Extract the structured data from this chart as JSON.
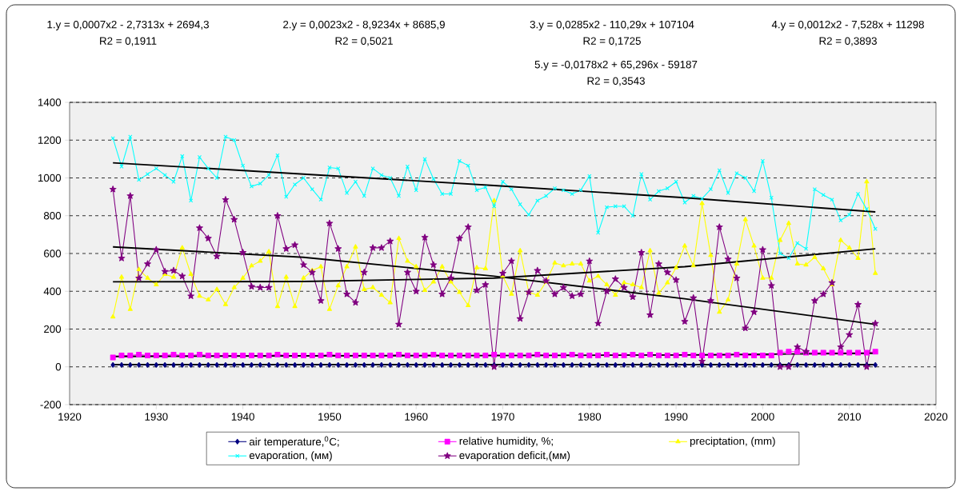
{
  "chart_data": {
    "type": "line",
    "xlim": [
      1920,
      2020
    ],
    "xticks": [
      1920,
      1930,
      1940,
      1950,
      1960,
      1970,
      1980,
      1990,
      2000,
      2010,
      2020
    ],
    "ylim": [
      -200,
      1400
    ],
    "yticks": [
      -200,
      0,
      200,
      400,
      600,
      800,
      1000,
      1200,
      1400
    ],
    "grid": "y",
    "legend": "bottom",
    "line_style": "solid",
    "annotations": [
      "1.y = 0,0007x2 - 2,7313x + 2694,3",
      "R2 = 0,1911",
      "2.y = 0,0023x2 - 8,9234x + 8685,9",
      "R2 = 0,5021",
      "3.y = 0,0285x2 - 110,29x + 107104",
      "R2 = 0,1725",
      "4.y = 0,0012x2 - 7,528x + 11298",
      "R2 = 0,3893",
      "5.y = -0,0178x2 + 65,296x - 59187",
      "R2 = 0,3543"
    ],
    "x": [
      1925,
      1926,
      1927,
      1928,
      1929,
      1930,
      1931,
      1932,
      1933,
      1934,
      1935,
      1936,
      1937,
      1938,
      1939,
      1940,
      1941,
      1942,
      1943,
      1944,
      1945,
      1946,
      1947,
      1948,
      1949,
      1950,
      1951,
      1952,
      1953,
      1954,
      1955,
      1956,
      1957,
      1958,
      1959,
      1960,
      1961,
      1962,
      1963,
      1964,
      1965,
      1966,
      1967,
      1968,
      1969,
      1970,
      1971,
      1972,
      1973,
      1974,
      1975,
      1976,
      1977,
      1978,
      1979,
      1980,
      1981,
      1982,
      1983,
      1984,
      1985,
      1986,
      1987,
      1988,
      1989,
      1990,
      1991,
      1992,
      1993,
      1994,
      1995,
      1996,
      1997,
      1998,
      1999,
      2000,
      2001,
      2002,
      2003,
      2004,
      2005,
      2006,
      2007,
      2008,
      2009,
      2010,
      2011,
      2012,
      2013
    ],
    "series": [
      {
        "name": "air temperature,$^{0}$C;",
        "color": "#000080",
        "marker": "diamond",
        "values": [
          10,
          10,
          10,
          10,
          10,
          10,
          10,
          10,
          10,
          10,
          10,
          10,
          10,
          10,
          10,
          10,
          10,
          10,
          10,
          10,
          10,
          10,
          10,
          10,
          10,
          10,
          10,
          10,
          10,
          10,
          10,
          10,
          10,
          10,
          10,
          10,
          10,
          10,
          10,
          10,
          10,
          10,
          10,
          10,
          10,
          10,
          10,
          10,
          10,
          10,
          10,
          10,
          10,
          10,
          10,
          10,
          10,
          10,
          10,
          10,
          10,
          10,
          10,
          10,
          10,
          10,
          10,
          10,
          10,
          10,
          10,
          10,
          10,
          10,
          10,
          10,
          10,
          10,
          10,
          10,
          10,
          10,
          10,
          10,
          10,
          10,
          10,
          10,
          10
        ]
      },
      {
        "name": "relative humidity, %;",
        "color": "#ff00ff",
        "marker": "square",
        "values": [
          50,
          60,
          60,
          65,
          60,
          60,
          60,
          65,
          60,
          60,
          65,
          60,
          60,
          60,
          60,
          60,
          60,
          60,
          60,
          65,
          60,
          60,
          60,
          60,
          60,
          65,
          60,
          60,
          60,
          60,
          60,
          60,
          60,
          65,
          60,
          60,
          60,
          65,
          60,
          60,
          60,
          60,
          60,
          60,
          65,
          60,
          60,
          60,
          60,
          65,
          60,
          60,
          60,
          65,
          60,
          60,
          60,
          65,
          60,
          60,
          65,
          60,
          65,
          60,
          60,
          60,
          65,
          60,
          60,
          60,
          60,
          60,
          65,
          60,
          60,
          60,
          60,
          75,
          80,
          80,
          75,
          75,
          75,
          75,
          75,
          75,
          75,
          75,
          80
        ]
      },
      {
        "name": "preciptation, (mm)",
        "color": "#ffff00",
        "marker": "triangle",
        "values": [
          265,
          475,
          305,
          515,
          470,
          435,
          490,
          475,
          630,
          490,
          375,
          355,
          410,
          330,
          420,
          470,
          535,
          560,
          610,
          320,
          475,
          320,
          470,
          510,
          530,
          305,
          430,
          530,
          635,
          410,
          420,
          380,
          340,
          680,
          560,
          530,
          405,
          450,
          530,
          450,
          395,
          325,
          525,
          520,
          880,
          480,
          385,
          615,
          395,
          380,
          450,
          550,
          535,
          545,
          545,
          455,
          480,
          435,
          380,
          445,
          435,
          420,
          615,
          390,
          445,
          525,
          640,
          535,
          865,
          590,
          290,
          355,
          545,
          780,
          640,
          470,
          470,
          670,
          760,
          545,
          540,
          580,
          520,
          435,
          670,
          630,
          575,
          980,
          495
        ]
      },
      {
        "name": "evaporation, (мм)",
        "color": "#00ffff",
        "marker": "cross",
        "values": [
          1210,
          1060,
          1218,
          990,
          1020,
          1050,
          1015,
          980,
          1115,
          880,
          1110,
          1050,
          1000,
          1218,
          1200,
          1065,
          955,
          970,
          1015,
          1120,
          900,
          965,
          1000,
          940,
          885,
          1055,
          1050,
          920,
          980,
          905,
          1050,
          1015,
          1000,
          905,
          1060,
          935,
          1100,
          995,
          915,
          915,
          1090,
          1065,
          935,
          950,
          850,
          980,
          940,
          860,
          805,
          880,
          905,
          945,
          935,
          915,
          935,
          1010,
          710,
          845,
          850,
          850,
          800,
          1020,
          885,
          930,
          945,
          980,
          870,
          905,
          890,
          940,
          1040,
          920,
          1025,
          1000,
          930,
          1090,
          895,
          600,
          575,
          655,
          625,
          940,
          910,
          885,
          775,
          805,
          915,
          835,
          730
        ]
      },
      {
        "name": "evaporation deficit,(мм)",
        "color": "#800080",
        "marker": "star",
        "values": [
          940,
          575,
          905,
          470,
          545,
          620,
          505,
          510,
          480,
          375,
          735,
          680,
          585,
          885,
          780,
          605,
          425,
          420,
          420,
          800,
          625,
          645,
          540,
          500,
          350,
          760,
          625,
          385,
          340,
          500,
          630,
          630,
          665,
          225,
          500,
          400,
          685,
          540,
          385,
          470,
          680,
          740,
          405,
          435,
          0,
          495,
          560,
          255,
          395,
          510,
          455,
          385,
          420,
          375,
          385,
          560,
          230,
          400,
          465,
          420,
          370,
          605,
          275,
          545,
          500,
          460,
          240,
          365,
          30,
          350,
          740,
          570,
          470,
          205,
          290,
          620,
          430,
          0,
          0,
          105,
          80,
          350,
          385,
          445,
          105,
          170,
          330,
          0,
          230
        ]
      },
      {
        "type": "line",
        "color": "#000000",
        "marker": "none",
        "x": [
          1925,
          1947,
          1969,
          1991,
          2013
        ],
        "values": [
          12,
          12,
          12,
          12,
          12
        ]
      },
      {
        "type": "line",
        "color": "#000000",
        "marker": "none",
        "x": [
          1925,
          1947,
          1969,
          1991,
          2013
        ],
        "values": [
          55,
          58,
          60,
          63,
          72
        ]
      },
      {
        "type": "line",
        "color": "#000000",
        "marker": "none",
        "x": [
          1925,
          1947,
          1969,
          1991,
          2013
        ],
        "values": [
          450,
          452,
          470,
          530,
          625
        ]
      },
      {
        "type": "line",
        "color": "#000000",
        "marker": "none",
        "x": [
          1925,
          1947,
          1969,
          1991,
          2013
        ],
        "values": [
          1080,
          1020,
          960,
          895,
          820
        ]
      },
      {
        "type": "line",
        "color": "#000000",
        "marker": "none",
        "x": [
          1925,
          1947,
          1969,
          1991,
          2013
        ],
        "values": [
          635,
          580,
          480,
          360,
          225
        ]
      }
    ]
  }
}
